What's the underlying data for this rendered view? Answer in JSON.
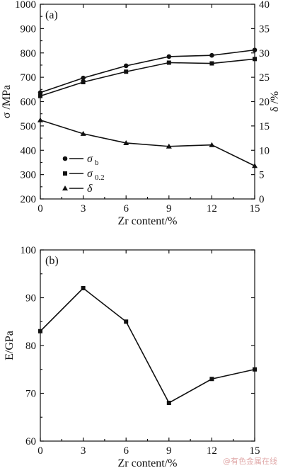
{
  "watermark": "@有色金属在线",
  "chart_data": [
    {
      "type": "line",
      "panel_label": "(a)",
      "x": [
        0,
        3,
        6,
        9,
        12,
        15
      ],
      "x_tick_labels": [
        "0",
        "3",
        "6",
        "9",
        "12",
        "15"
      ],
      "xlabel": "Zr content/%",
      "xlim": [
        0,
        15
      ],
      "ylabel": "σ /MPa",
      "ylim": [
        200,
        1000
      ],
      "y_ticks": [
        200,
        300,
        400,
        500,
        600,
        700,
        800,
        900,
        1000
      ],
      "y2label": "δ /%",
      "y2lim": [
        0,
        40
      ],
      "y2_ticks": [
        0,
        5,
        10,
        15,
        20,
        25,
        30,
        35,
        40
      ],
      "legend_position": "left-middle",
      "series": [
        {
          "name": "σ b",
          "label_main": "σ",
          "label_sub": "b",
          "marker": "circle",
          "axis": "left",
          "values": [
            637,
            697,
            747,
            785,
            790,
            812
          ]
        },
        {
          "name": "σ 0.2",
          "label_main": "σ",
          "label_sub": "0.2",
          "marker": "square",
          "axis": "left",
          "values": [
            623,
            680,
            723,
            760,
            757,
            775
          ]
        },
        {
          "name": "δ",
          "label_main": "δ",
          "label_sub": "",
          "marker": "triangle",
          "axis": "right",
          "values": [
            16.2,
            13.4,
            11.5,
            10.8,
            11.1,
            6.8
          ]
        }
      ]
    },
    {
      "type": "line",
      "panel_label": "(b)",
      "x": [
        0,
        3,
        6,
        9,
        12,
        15
      ],
      "x_tick_labels": [
        "0",
        "3",
        "6",
        "9",
        "12",
        "15"
      ],
      "xlabel": "Zr content/%",
      "xlim": [
        0,
        15
      ],
      "ylabel": "E/GPa",
      "ylim": [
        60,
        100
      ],
      "y_ticks": [
        60,
        70,
        80,
        90,
        100
      ],
      "series": [
        {
          "marker": "square",
          "values": [
            83,
            92,
            85,
            68,
            73,
            75
          ]
        }
      ]
    }
  ]
}
